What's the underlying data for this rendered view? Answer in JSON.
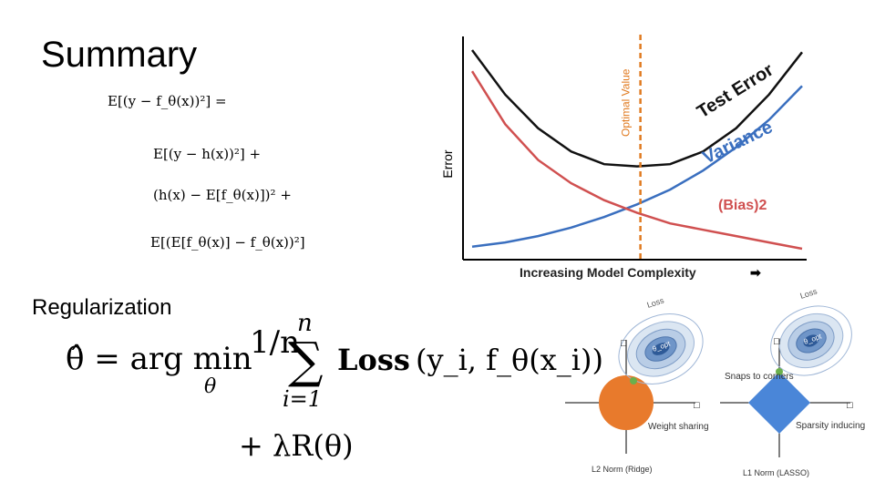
{
  "slide": {
    "title": "Summary",
    "regularization_heading": "Regularization"
  },
  "summary_equations": {
    "lhs": "E[(y − f_θ(x))²] =",
    "term_noise": "E[(y − h(x))²] +",
    "term_bias": "(h(x) − E[f_θ(x)])² +",
    "term_variance": "E[(E[f_θ(x)] − f_θ(x))²]"
  },
  "regularization_formula": {
    "lhs": "θ̂ = arg min",
    "min_sub": "θ",
    "frac": "1/n",
    "sum_upper": "n",
    "sum_lower": "i=1",
    "loss_label": "Loss",
    "loss_args": "(y_i, f_θ(x_i))",
    "penalty": "+ λR(θ)"
  },
  "chart_data": {
    "type": "line",
    "xlabel": "Increasing Model Complexity",
    "ylabel": "Error",
    "vertical_marker_label": "Optimal Value",
    "series": [
      {
        "name": "Test Error",
        "color": "#111111",
        "x": [
          0,
          1,
          2,
          3,
          4,
          5,
          6,
          7,
          8,
          9,
          10
        ],
        "values": [
          9.7,
          7.6,
          6.0,
          4.9,
          4.3,
          4.2,
          4.3,
          4.9,
          6.0,
          7.6,
          9.6
        ]
      },
      {
        "name": "Variance",
        "color": "#3a6fbf",
        "x": [
          0,
          1,
          2,
          3,
          4,
          5,
          6,
          7,
          8,
          9,
          10
        ],
        "values": [
          0.4,
          0.6,
          0.9,
          1.3,
          1.8,
          2.4,
          3.1,
          4.0,
          5.1,
          6.4,
          8.0
        ]
      },
      {
        "name": "(Bias)2",
        "color": "#d05050",
        "x": [
          0,
          1,
          2,
          3,
          4,
          5,
          6,
          7,
          8,
          9,
          10
        ],
        "values": [
          8.7,
          6.2,
          4.5,
          3.4,
          2.6,
          2.0,
          1.5,
          1.2,
          0.9,
          0.6,
          0.3
        ]
      }
    ],
    "optimal_x": 5.1,
    "colors": {
      "marker": "#e07a20",
      "axis": "#000000"
    }
  },
  "norm_diagrams": [
    {
      "caption": "L2 Norm (Ridge)",
      "shape_label": "Weight sharing",
      "loss_label": "Loss",
      "ellipse_label": "θ_opt",
      "axis_label_x": "□",
      "axis_label_y": "□",
      "shape_color": "#e87a2c"
    },
    {
      "caption": "L1 Norm (LASSO)",
      "shape_label": "Sparsity inducing",
      "loss_label": "Loss",
      "ellipse_label": "θ_opt",
      "axis_label_x": "□",
      "axis_label_y": "□",
      "annotation": "Snaps to corners",
      "shape_color": "#4a86d8"
    }
  ]
}
